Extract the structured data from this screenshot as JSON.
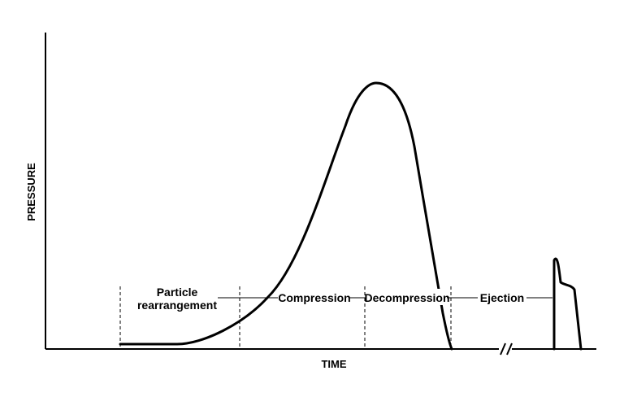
{
  "axes": {
    "y_label": "PRESSURE",
    "x_label": "TIME"
  },
  "phases": [
    {
      "line1": "Particle",
      "line2": "rearrangement"
    },
    {
      "label": "Compression"
    },
    {
      "label": "Decompression"
    },
    {
      "label": "Ejection"
    }
  ],
  "axis_break_symbol": "//"
}
